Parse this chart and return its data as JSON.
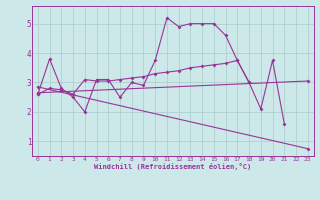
{
  "background_color": "#cce8e8",
  "grid_color": "#aacccc",
  "line_color": "#993399",
  "xlabel": "Windchill (Refroidissement éolien,°C)",
  "xlim": [
    -0.5,
    23.5
  ],
  "ylim": [
    0.5,
    5.6
  ],
  "yticks": [
    1,
    2,
    3,
    4,
    5
  ],
  "xticks": [
    0,
    1,
    2,
    3,
    4,
    5,
    6,
    7,
    8,
    9,
    10,
    11,
    12,
    13,
    14,
    15,
    16,
    17,
    18,
    19,
    20,
    21,
    22,
    23
  ],
  "series": [
    {
      "x": [
        0,
        1,
        2,
        3,
        4,
        5,
        6,
        7,
        8,
        9,
        10,
        11,
        12,
        13,
        14,
        15,
        16,
        17,
        18,
        19,
        20,
        21
      ],
      "y": [
        2.6,
        3.8,
        2.8,
        2.5,
        2.0,
        3.1,
        3.1,
        2.5,
        3.0,
        2.9,
        3.75,
        5.2,
        4.9,
        5.0,
        5.0,
        5.0,
        4.6,
        3.75,
        3.0,
        2.1,
        3.75,
        1.6
      ]
    },
    {
      "x": [
        0,
        1,
        2,
        3,
        4,
        5,
        6,
        7,
        8,
        9,
        10,
        11,
        12,
        13,
        14,
        15,
        16,
        17,
        18
      ],
      "y": [
        2.6,
        2.8,
        2.75,
        2.6,
        3.1,
        3.05,
        3.05,
        3.1,
        3.15,
        3.2,
        3.3,
        3.35,
        3.4,
        3.5,
        3.55,
        3.6,
        3.65,
        3.75,
        3.0
      ]
    },
    {
      "x": [
        0,
        23
      ],
      "y": [
        2.85,
        0.75
      ]
    },
    {
      "x": [
        0,
        23
      ],
      "y": [
        2.65,
        3.05
      ]
    }
  ],
  "figsize": [
    3.2,
    2.0
  ],
  "dpi": 100
}
